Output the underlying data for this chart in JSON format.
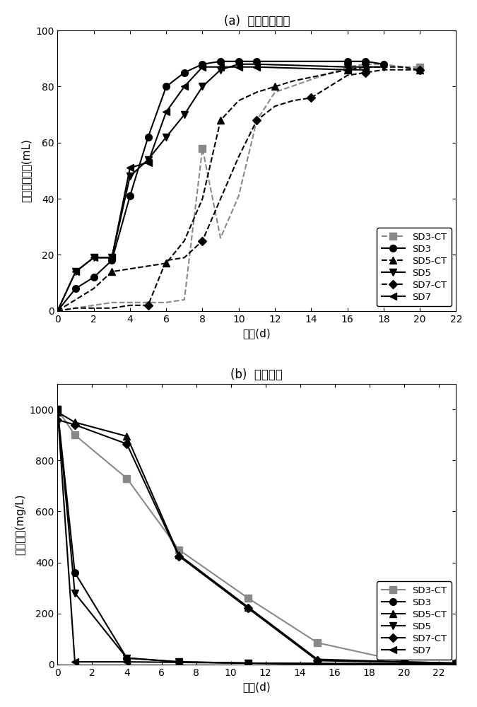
{
  "panel_a": {
    "title": "(a)  累积产甲烷量",
    "xlabel": "时间(d)",
    "ylabel": "累积产甲烷量(mL)",
    "xlim": [
      0,
      22
    ],
    "ylim": [
      0,
      100
    ],
    "xticks": [
      0,
      2,
      4,
      6,
      8,
      10,
      12,
      14,
      16,
      18,
      20,
      22
    ],
    "yticks": [
      0,
      20,
      40,
      60,
      80,
      100
    ],
    "series": {
      "SD3-CT": {
        "x": [
          0,
          1,
          2,
          3,
          4,
          5,
          6,
          7,
          8,
          9,
          10,
          11,
          12,
          16,
          17,
          18,
          19,
          20
        ],
        "y": [
          0,
          1,
          2,
          3,
          3,
          3,
          3,
          4,
          58,
          26,
          41,
          68,
          78,
          87,
          88,
          88,
          87,
          87
        ],
        "color": "#888888",
        "marker": "s",
        "linestyle": "--",
        "markersize": 7,
        "markevery": [
          0,
          8,
          13,
          17
        ]
      },
      "SD3": {
        "x": [
          0,
          1,
          2,
          3,
          4,
          5,
          6,
          7,
          8,
          9,
          10,
          11,
          16,
          17,
          18
        ],
        "y": [
          0,
          8,
          12,
          18,
          41,
          62,
          80,
          85,
          88,
          89,
          89,
          89,
          89,
          89,
          88
        ],
        "color": "#000000",
        "marker": "o",
        "linestyle": "-",
        "markersize": 7,
        "markevery": 1
      },
      "SD5-CT": {
        "x": [
          0,
          1,
          2,
          3,
          4,
          5,
          6,
          7,
          8,
          9,
          10,
          11,
          12,
          13,
          16,
          17,
          18,
          19,
          20
        ],
        "y": [
          0,
          4,
          8,
          14,
          15,
          16,
          17,
          25,
          40,
          68,
          75,
          78,
          80,
          82,
          86,
          87,
          87,
          87,
          86
        ],
        "color": "#000000",
        "marker": "^",
        "linestyle": "--",
        "markersize": 7,
        "markevery": [
          0,
          3,
          6,
          9,
          12,
          14,
          18
        ]
      },
      "SD5": {
        "x": [
          0,
          1,
          2,
          3,
          4,
          5,
          6,
          7,
          8,
          9,
          10,
          11,
          16,
          17,
          18
        ],
        "y": [
          0,
          14,
          19,
          19,
          48,
          54,
          62,
          70,
          80,
          86,
          88,
          88,
          87,
          87,
          87
        ],
        "color": "#000000",
        "marker": "v",
        "linestyle": "-",
        "markersize": 7,
        "markevery": 1
      },
      "SD7-CT": {
        "x": [
          0,
          1,
          2,
          3,
          4,
          5,
          6,
          7,
          8,
          9,
          10,
          11,
          12,
          13,
          14,
          16,
          17,
          18,
          20
        ],
        "y": [
          0,
          1,
          1,
          1,
          2,
          2,
          18,
          19,
          25,
          40,
          55,
          68,
          73,
          75,
          76,
          84,
          85,
          86,
          86
        ],
        "color": "#000000",
        "marker": "D",
        "linestyle": "--",
        "markersize": 6,
        "markevery": [
          0,
          5,
          8,
          11,
          14,
          16,
          18
        ]
      },
      "SD7": {
        "x": [
          0,
          1,
          2,
          3,
          4,
          5,
          6,
          7,
          8,
          9,
          10,
          11,
          16,
          17
        ],
        "y": [
          0,
          14,
          19,
          19,
          51,
          53,
          71,
          80,
          87,
          87,
          87,
          87,
          86,
          86
        ],
        "color": "#000000",
        "marker": "<",
        "linestyle": "-",
        "markersize": 7,
        "markevery": 1
      }
    },
    "legend_order": [
      "SD3-CT",
      "SD3",
      "SD5-CT",
      "SD5",
      "SD7-CT",
      "SD7"
    ]
  },
  "panel_b": {
    "title": "(b)  苯酚降解",
    "xlabel": "时间(d)",
    "ylabel": "苯酚浓度(mg/L)",
    "xlim": [
      0,
      23
    ],
    "ylim": [
      0,
      1100
    ],
    "xticks": [
      0,
      2,
      4,
      6,
      8,
      10,
      12,
      14,
      16,
      18,
      20,
      22
    ],
    "yticks": [
      0,
      200,
      400,
      600,
      800,
      1000
    ],
    "series": {
      "SD3-CT": {
        "x": [
          0,
          1,
          4,
          7,
          11,
          15,
          20,
          23
        ],
        "y": [
          1000,
          900,
          730,
          450,
          260,
          85,
          10,
          5
        ],
        "color": "#888888",
        "marker": "s",
        "linestyle": "-",
        "markersize": 7,
        "markevery": 1
      },
      "SD3": {
        "x": [
          0,
          1,
          4,
          7,
          11,
          15,
          20,
          23
        ],
        "y": [
          1000,
          360,
          25,
          10,
          5,
          3,
          2,
          2
        ],
        "color": "#000000",
        "marker": "o",
        "linestyle": "-",
        "markersize": 7,
        "markevery": 1
      },
      "SD5-CT": {
        "x": [
          0,
          1,
          4,
          7,
          11,
          15,
          20,
          23
        ],
        "y": [
          990,
          950,
          895,
          430,
          225,
          20,
          10,
          5
        ],
        "color": "#000000",
        "marker": "^",
        "linestyle": "-",
        "markersize": 7,
        "markevery": 1
      },
      "SD5": {
        "x": [
          0,
          1,
          4,
          7,
          11,
          15,
          20,
          23
        ],
        "y": [
          1000,
          280,
          25,
          10,
          5,
          3,
          2,
          2
        ],
        "color": "#000000",
        "marker": "v",
        "linestyle": "-",
        "markersize": 7,
        "markevery": 1
      },
      "SD7-CT": {
        "x": [
          0,
          1,
          4,
          7,
          11,
          15,
          20,
          23
        ],
        "y": [
          960,
          940,
          865,
          425,
          220,
          15,
          8,
          5
        ],
        "color": "#000000",
        "marker": "D",
        "linestyle": "-",
        "markersize": 6,
        "markevery": 1
      },
      "SD7": {
        "x": [
          0,
          1,
          4,
          7,
          11,
          15,
          20,
          23
        ],
        "y": [
          1000,
          10,
          10,
          8,
          5,
          3,
          2,
          2
        ],
        "color": "#000000",
        "marker": "<",
        "linestyle": "-",
        "markersize": 7,
        "markevery": 1
      }
    },
    "legend_order": [
      "SD3-CT",
      "SD3",
      "SD5-CT",
      "SD5",
      "SD7-CT",
      "SD7"
    ]
  },
  "style": {
    "linewidth": 1.5,
    "tick_labelsize": 10,
    "axis_labelsize": 11,
    "title_fontsize": 12,
    "legend_fontsize": 9.5,
    "figsize": [
      6.75,
      10.0
    ],
    "dpi": 100
  }
}
